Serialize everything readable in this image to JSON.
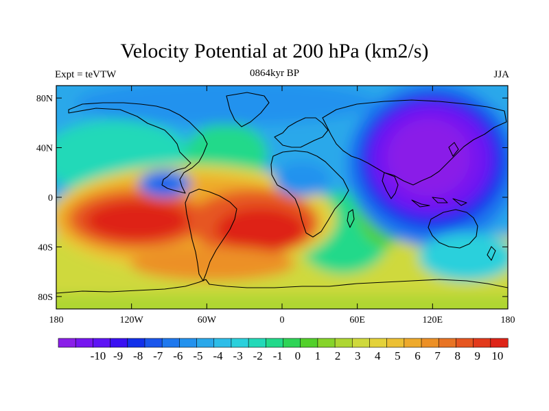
{
  "title": "Velocity Potential at 200 hPa (km2/s)",
  "left_label": "Expt = teVTW",
  "center_label": "0864kyr BP",
  "right_label": "JJA",
  "chart_data": {
    "type": "heatmap",
    "variable": "velocity potential",
    "level": "200 hPa",
    "units": "km2/s",
    "x_ticks": [
      "180",
      "120W",
      "60W",
      "0",
      "60E",
      "120E",
      "180"
    ],
    "x_tick_values": [
      -180,
      -120,
      -60,
      0,
      60,
      120,
      180
    ],
    "y_ticks": [
      "80N",
      "40N",
      "0",
      "40S",
      "80S"
    ],
    "y_tick_values": [
      80,
      40,
      0,
      -40,
      -80
    ],
    "xlim": [
      -180,
      180
    ],
    "ylim": [
      -90,
      90
    ],
    "colorbar_labels": [
      "-10",
      "-9",
      "-8",
      "-7",
      "-6",
      "-5",
      "-4",
      "-3",
      "-2",
      "-1",
      "0",
      "1",
      "2",
      "3",
      "4",
      "5",
      "6",
      "7",
      "8",
      "9",
      "10"
    ],
    "colorbar_levels": [
      -10,
      10
    ],
    "colors": [
      "#8a1fe8",
      "#7616f0",
      "#5e14f5",
      "#3a10f2",
      "#1230ea",
      "#1a56ec",
      "#1e78ee",
      "#2392ee",
      "#2aa8ea",
      "#2dbde8",
      "#2ad0dc",
      "#23d9b8",
      "#22d98a",
      "#2ed456",
      "#52d02a",
      "#86d42a",
      "#aed632",
      "#cfd93c",
      "#e4d23a",
      "#ecc034",
      "#eeaa2c",
      "#ec9026",
      "#e87424",
      "#e65620",
      "#e23a1c",
      "#de2418"
    ],
    "features": [
      {
        "name": "minimum",
        "lon": 130,
        "lat": 30,
        "value": -9.5
      },
      {
        "name": "minimum",
        "lon": -95,
        "lat": 10,
        "value": -2.5
      },
      {
        "name": "minimum",
        "lon": 10,
        "lat": 10,
        "value": -1.5
      },
      {
        "name": "maximum",
        "lon": -140,
        "lat": -15,
        "value": 9
      },
      {
        "name": "maximum",
        "lon": -30,
        "lat": -20,
        "value": 9.5
      }
    ]
  }
}
